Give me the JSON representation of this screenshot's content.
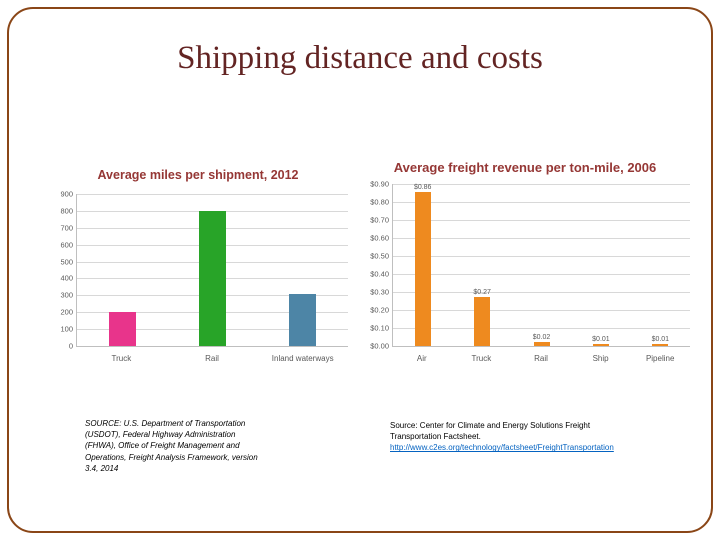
{
  "slide": {
    "title": "Shipping distance and costs"
  },
  "chart_data": [
    {
      "type": "bar",
      "title": "Average miles per shipment, 2012",
      "categories": [
        "Truck",
        "Rail",
        "Inland waterways"
      ],
      "values": [
        200,
        800,
        310
      ],
      "value_labels": null,
      "ylim": [
        0,
        900
      ],
      "ytick_values": [
        0,
        100,
        200,
        300,
        400,
        500,
        600,
        700,
        800,
        900
      ],
      "ytick_labels": [
        "0",
        "100",
        "200",
        "300",
        "400",
        "500",
        "600",
        "700",
        "800",
        "900"
      ],
      "colors": [
        "#e8348b",
        "#28a428",
        "#4d85a6"
      ],
      "grid": true,
      "legend": "none"
    },
    {
      "type": "bar",
      "title": "Average freight revenue per ton-mile, 2006",
      "categories": [
        "Air",
        "Truck",
        "Rail",
        "Ship",
        "Pipeline"
      ],
      "values": [
        0.86,
        0.27,
        0.02,
        0.01,
        0.01
      ],
      "value_labels": [
        "$0.86",
        "$0.27",
        "$0.02",
        "$0.01",
        "$0.01"
      ],
      "ylim": [
        0,
        0.9
      ],
      "ytick_values": [
        0,
        0.1,
        0.2,
        0.3,
        0.4,
        0.5,
        0.6,
        0.7,
        0.8,
        0.9
      ],
      "ytick_labels": [
        "$0.00",
        "$0.10",
        "$0.20",
        "$0.30",
        "$0.40",
        "$0.50",
        "$0.60",
        "$0.70",
        "$0.80",
        "$0.90"
      ],
      "colors": [
        "#ee8a1f"
      ],
      "grid": true,
      "legend": "none"
    }
  ],
  "sources": {
    "left": "SOURCE: U.S. Department of Transportation (USDOT), Federal Highway Administration (FHWA), Office of Freight Management and Operations, Freight Analysis Framework, version 3.4, 2014",
    "right_text": "Source: Center for Climate and Energy Solutions Freight Transportation Factsheet.",
    "right_link": "http://www.c2es.org/technology/factsheet/FreightTransportation"
  }
}
